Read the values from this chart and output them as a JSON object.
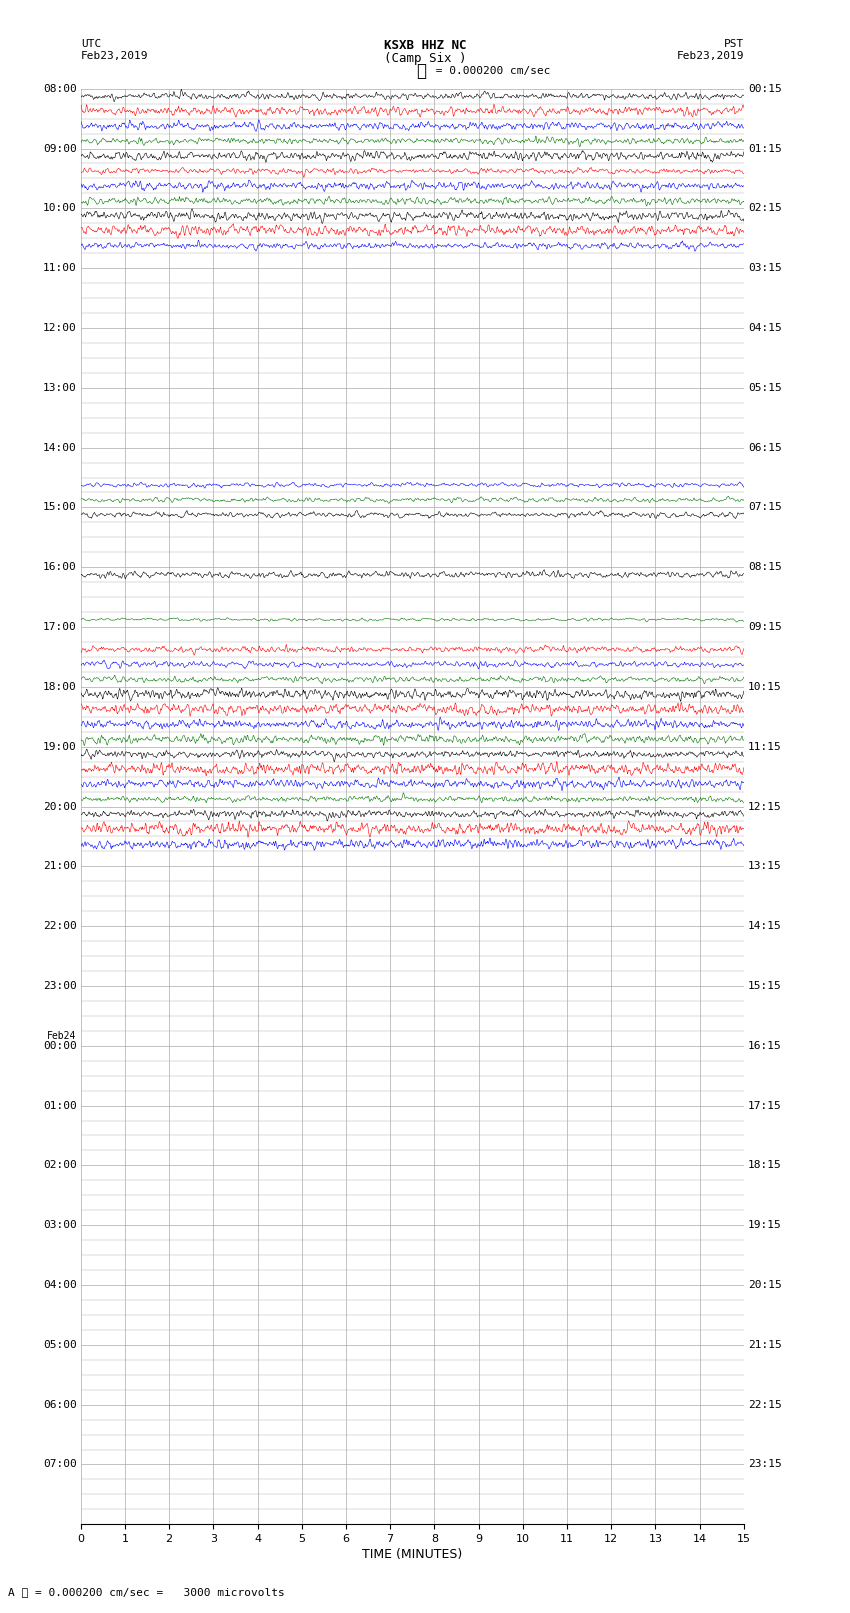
{
  "title": "KSXB HHZ NC",
  "subtitle": "(Camp Six )",
  "scale_text": "= 0.000200 cm/sec",
  "bottom_text": "= 0.000200 cm/sec =   3000 microvolts",
  "utc_label": "UTC",
  "utc_date": "Feb23,2019",
  "pst_label": "PST",
  "pst_date": "Feb23,2019",
  "xlabel": "TIME (MINUTES)",
  "xlim": [
    0,
    15
  ],
  "xticks": [
    0,
    1,
    2,
    3,
    4,
    5,
    6,
    7,
    8,
    9,
    10,
    11,
    12,
    13,
    14,
    15
  ],
  "background_color": "#ffffff",
  "grid_color": "#aaaaaa",
  "trace_colors": [
    "#000000",
    "#ff0000",
    "#0000ff",
    "#007700"
  ],
  "left_time_labels": [
    "08:00",
    "09:00",
    "10:00",
    "11:00",
    "12:00",
    "13:00",
    "14:00",
    "15:00",
    "16:00",
    "17:00",
    "18:00",
    "19:00",
    "20:00",
    "21:00",
    "22:00",
    "23:00",
    "Feb24\n00:00",
    "01:00",
    "02:00",
    "03:00",
    "04:00",
    "05:00",
    "06:00",
    "07:00"
  ],
  "right_time_labels": [
    "00:15",
    "01:15",
    "02:15",
    "03:15",
    "04:15",
    "05:15",
    "06:15",
    "07:15",
    "08:15",
    "09:15",
    "10:15",
    "11:15",
    "12:15",
    "13:15",
    "14:15",
    "15:15",
    "16:15",
    "17:15",
    "18:15",
    "19:15",
    "20:15",
    "21:15",
    "22:15",
    "23:15"
  ],
  "n_hours": 24,
  "n_subrows": 4,
  "fig_width": 8.5,
  "fig_height": 16.13,
  "dpi": 100,
  "font_size": 8,
  "title_font_size": 9,
  "trace_amplitude": 0.42,
  "trace_lw": 0.4
}
